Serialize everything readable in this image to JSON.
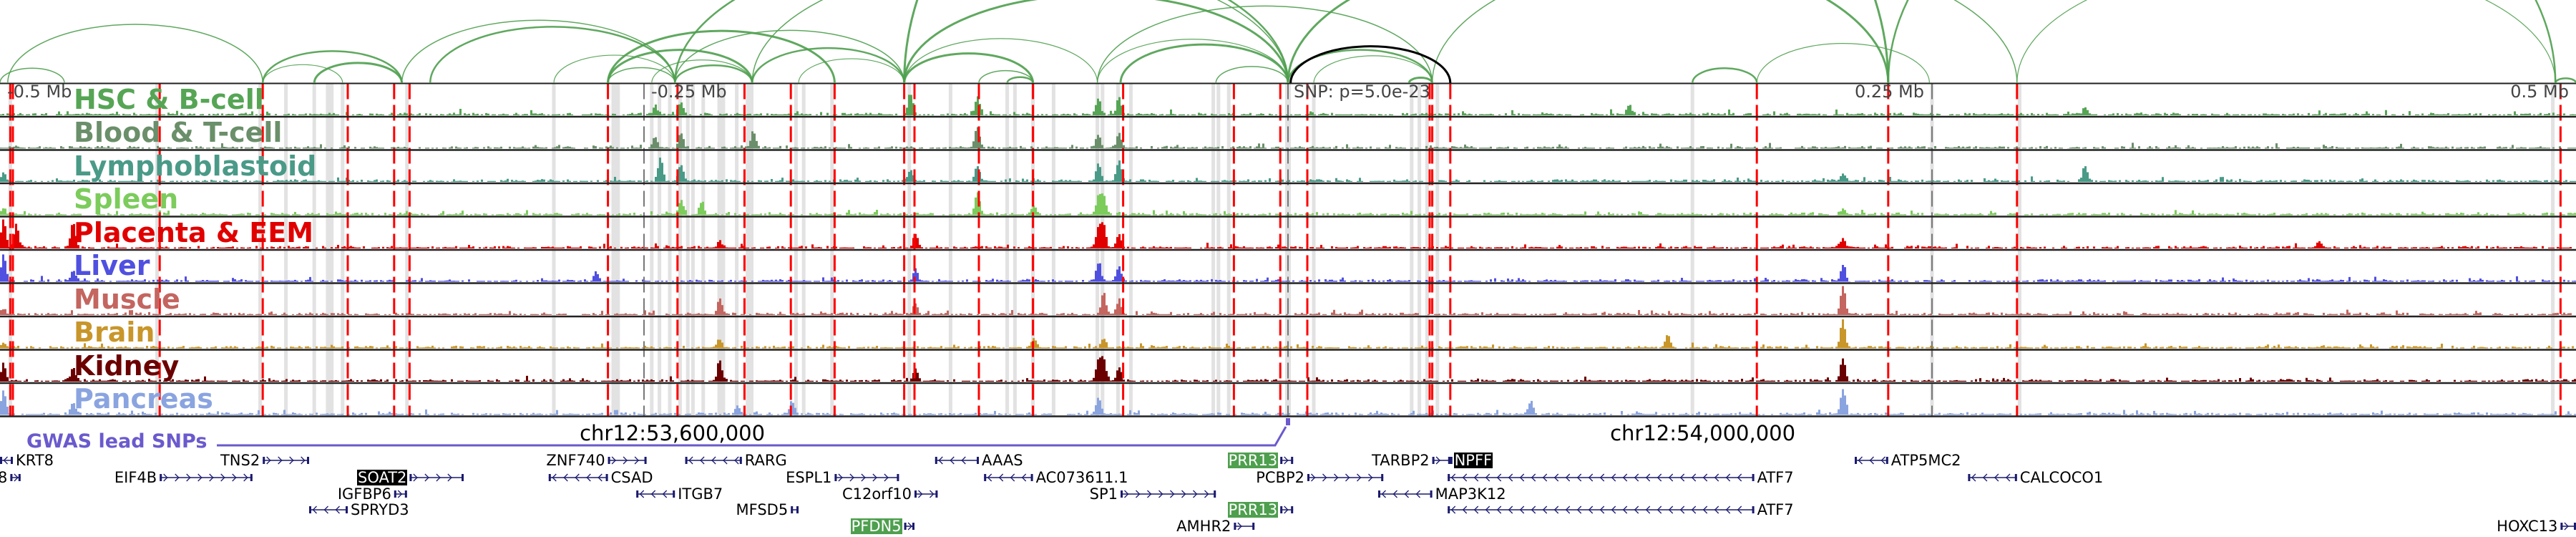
{
  "axis": {
    "snp_label": "SNP: p=5.0e-23",
    "ticks": [
      {
        "kb": -500,
        "label": "-0.5 Mb"
      },
      {
        "kb": -250,
        "label": "-0.25 Mb"
      },
      {
        "kb": 250,
        "label": "0.25 Mb"
      },
      {
        "kb": 500,
        "label": "0.5 Mb"
      }
    ],
    "chrom_labels": [
      {
        "kb": -239,
        "label": "chr12:53,600,000"
      },
      {
        "kb": 161,
        "label": "chr12:54,000,000"
      }
    ]
  },
  "gwas": {
    "label": "GWAS lead SNPs",
    "color": "#6a5acd"
  },
  "colors": {
    "arc": "#4e9f4e",
    "lead_arc": "#000000",
    "gwas_snp_line": "#ff0000",
    "highlight_band": "#e2e2e2",
    "gene": "#1a1a6e",
    "track_border": "#222222"
  },
  "chart_data": {
    "type": "area",
    "x_unit": "kb from lead SNP",
    "xlim": [
      -500,
      500
    ],
    "tracks": [
      {
        "name": "HSC & B-cell",
        "color": "#55a555",
        "peaks": [
          [
            -246,
            0.3
          ],
          [
            -236,
            0.45
          ],
          [
            -147,
            0.75
          ],
          [
            -121,
            0.6
          ],
          [
            -74,
            0.55
          ],
          [
            -66,
            0.6
          ],
          [
            132,
            0.35
          ],
          [
            309,
            0.25
          ]
        ]
      },
      {
        "name": "Blood & T-cell",
        "color": "#6a8f6a",
        "peaks": [
          [
            -246,
            0.4
          ],
          [
            -236,
            0.5
          ],
          [
            -208,
            0.6
          ],
          [
            -121,
            0.75
          ],
          [
            -74,
            0.45
          ],
          [
            -66,
            0.5
          ]
        ]
      },
      {
        "name": "Lymphoblastoid",
        "color": "#4a9a88",
        "peaks": [
          [
            -499,
            0.3
          ],
          [
            -244,
            0.8
          ],
          [
            -236,
            0.55
          ],
          [
            -147,
            0.4
          ],
          [
            -121,
            0.55
          ],
          [
            -74,
            0.6
          ],
          [
            -66,
            0.7
          ],
          [
            215,
            0.25
          ],
          [
            309,
            0.55
          ]
        ]
      },
      {
        "name": "Spleen",
        "color": "#7ccc5c",
        "peaks": [
          [
            -499,
            0.2
          ],
          [
            -236,
            0.5
          ],
          [
            -228,
            0.45
          ],
          [
            -121,
            0.75
          ],
          [
            -99,
            0.3
          ],
          [
            -74,
            0.6
          ],
          [
            -72,
            0.65
          ],
          [
            215,
            0.2
          ]
        ]
      },
      {
        "name": "Placenta & EEM",
        "color": "#e00000",
        "peaks": [
          [
            -499,
            1.0
          ],
          [
            -494,
            0.8
          ],
          [
            -472,
            0.9
          ],
          [
            -221,
            0.25
          ],
          [
            -145,
            0.5
          ],
          [
            -74,
            0.7
          ],
          [
            -72,
            0.8
          ],
          [
            -66,
            0.45
          ],
          [
            215,
            0.3
          ],
          [
            400,
            0.25
          ]
        ]
      },
      {
        "name": "Liver",
        "color": "#5050e0",
        "peaks": [
          [
            -499,
            0.9
          ],
          [
            -472,
            0.4
          ],
          [
            -269,
            0.3
          ],
          [
            -145,
            0.4
          ],
          [
            -74,
            0.6
          ],
          [
            -66,
            0.5
          ],
          [
            215,
            0.55
          ]
        ]
      },
      {
        "name": "Muscle",
        "color": "#c4655f",
        "peaks": [
          [
            -499,
            0.2
          ],
          [
            -221,
            0.55
          ],
          [
            -145,
            0.4
          ],
          [
            -72,
            0.75
          ],
          [
            -66,
            0.5
          ],
          [
            215,
            1.0
          ]
        ]
      },
      {
        "name": "Brain",
        "color": "#c8962a",
        "peaks": [
          [
            -499,
            0.15
          ],
          [
            -221,
            0.3
          ],
          [
            -99,
            0.3
          ],
          [
            -72,
            0.35
          ],
          [
            147,
            0.45
          ],
          [
            215,
            1.0
          ]
        ]
      },
      {
        "name": "Kidney",
        "color": "#6b0000",
        "peaks": [
          [
            -499,
            0.6
          ],
          [
            -472,
            0.5
          ],
          [
            -221,
            0.65
          ],
          [
            -145,
            0.4
          ],
          [
            -74,
            0.7
          ],
          [
            -72,
            0.75
          ],
          [
            -66,
            0.5
          ],
          [
            215,
            0.8
          ]
        ]
      },
      {
        "name": "Pancreas",
        "color": "#8aa4e0",
        "peaks": [
          [
            -499,
            0.8
          ],
          [
            -472,
            0.4
          ],
          [
            -214,
            0.3
          ],
          [
            -193,
            0.45
          ],
          [
            -74,
            0.6
          ],
          [
            94,
            0.45
          ],
          [
            215,
            0.85
          ]
        ]
      }
    ],
    "gwas_snps_kb": [
      -496,
      -495,
      -438,
      -398,
      -365,
      -347,
      -341,
      -264,
      -237,
      -211,
      -193,
      -176,
      -149,
      -145,
      -120,
      -99,
      -64,
      -21,
      -3,
      7.5,
      55,
      56,
      63,
      182,
      233,
      283,
      494
    ],
    "gray_dashed_kb": [
      -250,
      0,
      250
    ],
    "highlight_bands_kb": [
      [
        -496,
        1.4
      ],
      [
        -439,
        1.4
      ],
      [
        -399,
        1.4
      ],
      [
        -389,
        1.4
      ],
      [
        -378,
        1.4
      ],
      [
        -372,
        3
      ],
      [
        -367,
        1.4
      ],
      [
        -342,
        1.4
      ],
      [
        -285,
        1.4
      ],
      [
        -261,
        3.3
      ],
      [
        -247,
        1.4
      ],
      [
        -244,
        1.4
      ],
      [
        -240,
        1.4
      ],
      [
        -236,
        1.4
      ],
      [
        -233,
        1.4
      ],
      [
        -231,
        1.4
      ],
      [
        -227,
        1.4
      ],
      [
        -220,
        3
      ],
      [
        -214,
        1.4
      ],
      [
        -209,
        3
      ],
      [
        -191,
        1.4
      ],
      [
        -188,
        1.4
      ],
      [
        -177,
        1.4
      ],
      [
        -147,
        1.4
      ],
      [
        -131,
        1.4
      ],
      [
        -109,
        1.4
      ],
      [
        -106,
        1.4
      ],
      [
        -99,
        1.4
      ],
      [
        -91,
        1.4
      ],
      [
        -74,
        1.4
      ],
      [
        -72,
        1.4
      ],
      [
        -66,
        1.4
      ],
      [
        -61,
        1.4
      ],
      [
        -29,
        1.4
      ],
      [
        -27,
        1.4
      ],
      [
        -23,
        1.4
      ],
      [
        0,
        2.2
      ],
      [
        10,
        1.4
      ],
      [
        48,
        1.4
      ],
      [
        51,
        1.4
      ],
      [
        54,
        1.4
      ],
      [
        58,
        1.4
      ],
      [
        157,
        1.4
      ],
      [
        250,
        1.4
      ],
      [
        284,
        1.4
      ],
      [
        491,
        1.4
      ]
    ],
    "arcs_kb": [
      [
        -497,
        -398
      ],
      [
        -398,
        -344
      ],
      [
        -398,
        -367
      ],
      [
        -378,
        -344
      ],
      [
        -344,
        -238
      ],
      [
        -333,
        -238
      ],
      [
        -285,
        -238
      ],
      [
        -264,
        -208
      ],
      [
        -264,
        -238
      ],
      [
        -238,
        -208
      ],
      [
        -247,
        -208
      ],
      [
        -264,
        -176
      ],
      [
        -238,
        -149
      ],
      [
        -208,
        -149
      ],
      [
        -190,
        -149
      ],
      [
        -149,
        -99
      ],
      [
        -120,
        -99
      ],
      [
        -109,
        -99
      ],
      [
        -149,
        -74
      ],
      [
        -149,
        0
      ],
      [
        -208,
        0
      ],
      [
        -238,
        0
      ],
      [
        -74,
        0
      ],
      [
        -65,
        0
      ],
      [
        -28,
        0
      ],
      [
        0,
        56
      ],
      [
        10,
        56
      ],
      [
        47,
        56
      ],
      [
        -74,
        56
      ],
      [
        157,
        182
      ],
      [
        182,
        249
      ],
      [
        -149,
        233
      ],
      [
        56,
        283
      ],
      [
        233,
        492
      ],
      [
        283,
        492
      ],
      [
        0,
        233
      ],
      [
        -500,
        -475
      ],
      [
        492,
        500
      ]
    ],
    "lead_arc_kb": [
      1,
      63
    ]
  },
  "genes": [
    {
      "name": "KRT8",
      "row": 0,
      "start": -500,
      "end": -495,
      "strand": "-",
      "label_side": "right"
    },
    {
      "name": "8",
      "row": 1,
      "start": -496,
      "end": -492,
      "strand": "+",
      "label_side": "left"
    },
    {
      "name": "TNS2",
      "row": 0,
      "start": -398,
      "end": -380,
      "strand": "+",
      "label_side": "left"
    },
    {
      "name": "EIF4B",
      "row": 1,
      "start": -438,
      "end": -402,
      "strand": "+",
      "label_side": "left"
    },
    {
      "name": "SOAT2",
      "row": 1,
      "start": -341,
      "end": -320,
      "strand": "+",
      "label_side": "left",
      "highlight": "black"
    },
    {
      "name": "IGFBP6",
      "row": 2,
      "start": -347,
      "end": -342,
      "strand": "+",
      "label_side": "left"
    },
    {
      "name": "SPRYD3",
      "row": 3,
      "start": -380,
      "end": -365,
      "strand": "-",
      "label_side": "right"
    },
    {
      "name": "ZNF740",
      "row": 0,
      "start": -264,
      "end": -249,
      "strand": "+",
      "label_side": "left"
    },
    {
      "name": "CSAD",
      "row": 1,
      "start": -287,
      "end": -264,
      "strand": "-",
      "label_side": "right"
    },
    {
      "name": "RARG",
      "row": 0,
      "start": -234,
      "end": -212,
      "strand": "-",
      "label_side": "right"
    },
    {
      "name": "ITGB7",
      "row": 2,
      "start": -253,
      "end": -238,
      "strand": "-",
      "label_side": "right"
    },
    {
      "name": "ESPL1",
      "row": 1,
      "start": -176,
      "end": -151,
      "strand": "+",
      "label_side": "left"
    },
    {
      "name": "C12orf10",
      "row": 2,
      "start": -145,
      "end": -136,
      "strand": "+",
      "label_side": "left"
    },
    {
      "name": "MFSD5",
      "row": 3,
      "start": -193,
      "end": -190,
      "strand": "+",
      "label_side": "left"
    },
    {
      "name": "PFDN5",
      "row": 4,
      "start": -149,
      "end": -145,
      "strand": "+",
      "label_side": "left",
      "highlight": "green"
    },
    {
      "name": "AAAS",
      "row": 0,
      "start": -137,
      "end": -120,
      "strand": "-",
      "label_side": "right"
    },
    {
      "name": "AC073611.1",
      "row": 1,
      "start": -118,
      "end": -99,
      "strand": "-",
      "label_side": "right"
    },
    {
      "name": "SP1",
      "row": 2,
      "start": -65,
      "end": -28,
      "strand": "+",
      "label_side": "left"
    },
    {
      "name": "PRR13",
      "row": 0,
      "start": -3,
      "end": 2,
      "strand": "+",
      "label_side": "left",
      "highlight": "green"
    },
    {
      "name": "PRR13",
      "row": 3,
      "start": -3,
      "end": 2,
      "strand": "+",
      "label_side": "left",
      "highlight": "green"
    },
    {
      "name": "AMHR2",
      "row": 4,
      "start": -21,
      "end": -13,
      "strand": "+",
      "label_side": "left"
    },
    {
      "name": "PCBP2",
      "row": 1,
      "start": 7.5,
      "end": 37,
      "strand": "+",
      "label_side": "left"
    },
    {
      "name": "TARBP2",
      "row": 0,
      "start": 56,
      "end": 63,
      "strand": "+",
      "label_side": "left"
    },
    {
      "name": "NPFF",
      "row": 0,
      "start": 63,
      "end": 63.5,
      "strand": "",
      "label_side": "right",
      "highlight": "black"
    },
    {
      "name": "ATF7",
      "row": 1,
      "start": 62,
      "end": 181,
      "strand": "-",
      "label_side": "right"
    },
    {
      "name": "MAP3K12",
      "row": 2,
      "start": 35,
      "end": 56,
      "strand": "-",
      "label_side": "right"
    },
    {
      "name": "ATF7",
      "row": 3,
      "start": 62,
      "end": 181,
      "strand": "-",
      "label_side": "right"
    },
    {
      "name": "ATP5MC2",
      "row": 0,
      "start": 220,
      "end": 233,
      "strand": "-",
      "label_side": "right"
    },
    {
      "name": "CALCOCO1",
      "row": 1,
      "start": 264,
      "end": 283,
      "strand": "-",
      "label_side": "right"
    },
    {
      "name": "HOXC13",
      "row": 4,
      "start": 494,
      "end": 500,
      "strand": "+",
      "label_side": "left"
    }
  ]
}
